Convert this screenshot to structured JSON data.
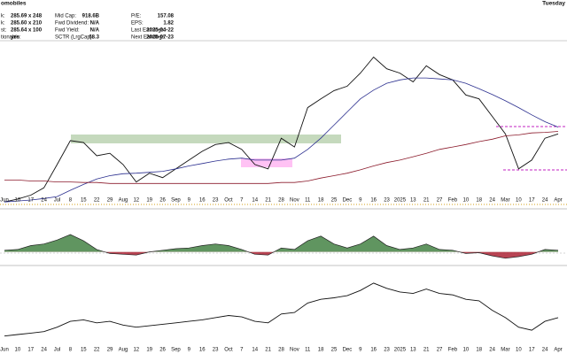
{
  "header": {
    "title": "omobiles",
    "day": "Tuesday",
    "info": [
      [
        [
          "k:",
          "285.69 x 248"
        ],
        [
          "Mid Cap:",
          "918.6B"
        ],
        [
          "P/E:",
          "157.08"
        ]
      ],
      [
        [
          "k:",
          "285.60 x 210"
        ],
        [
          "Fwd Dividend:",
          "N/A"
        ],
        [
          "EPS:",
          "1.82"
        ]
      ],
      [
        [
          "st:",
          "285.64 x 100"
        ],
        [
          "Fwd Yield:",
          "N/A"
        ],
        [
          "Last Earnings:",
          "2025-04-22"
        ]
      ],
      [
        [
          "tionable:",
          "yes"
        ],
        [
          "SCTR (LrgCap):",
          "68.3"
        ],
        [
          "Next Earnings:",
          "2025-07-23"
        ]
      ]
    ]
  },
  "chart_data": [
    {
      "type": "line",
      "categories": [
        "Jun",
        "10",
        "17",
        "24",
        "Jul",
        "8",
        "15",
        "22",
        "29",
        "Aug",
        "12",
        "19",
        "26",
        "Sep",
        "9",
        "16",
        "23",
        "Oct",
        "7",
        "14",
        "21",
        "28",
        "Nov",
        "11",
        "18",
        "25",
        "Dec",
        "9",
        "16",
        "23",
        "2025",
        "13",
        "21",
        "27",
        "Feb",
        "10",
        "18",
        "24",
        "Mar",
        "10",
        "17",
        "24",
        "Apr"
      ],
      "ylim": [
        170,
        505
      ],
      "series": [
        {
          "color": "#111111",
          "values": [
            177,
            183,
            191,
            206,
            254,
            303,
            299,
            272,
            277,
            254,
            218,
            236,
            227,
            245,
            263,
            281,
            295,
            299,
            285,
            254,
            245,
            308,
            290,
            371,
            389,
            406,
            415,
            442,
            475,
            451,
            442,
            424,
            457,
            439,
            428,
            397,
            389,
            353,
            317,
            245,
            263,
            308,
            317
          ]
        },
        {
          "color": "#2b2f8f",
          "values": [
            177,
            179,
            181,
            184,
            188,
            201,
            213,
            224,
            231,
            235,
            236,
            238,
            240,
            245,
            251,
            256,
            261,
            265,
            267,
            263,
            263,
            263,
            267,
            285,
            308,
            335,
            362,
            389,
            407,
            421,
            428,
            432,
            432,
            430,
            428,
            421,
            410,
            398,
            385,
            371,
            356,
            342,
            331
          ]
        },
        {
          "color": "#8b1a2b",
          "values": [
            222,
            222,
            220,
            220,
            218,
            218,
            217,
            217,
            215,
            215,
            215,
            215,
            215,
            215,
            215,
            215,
            215,
            215,
            215,
            215,
            215,
            217,
            217,
            220,
            226,
            231,
            236,
            243,
            251,
            258,
            263,
            270,
            277,
            285,
            290,
            295,
            301,
            306,
            313,
            315,
            319,
            320,
            322
          ]
        }
      ]
    },
    {
      "type": "area",
      "ylim": [
        -15,
        50
      ],
      "color": "#4f8a4f",
      "negative_color": "#b03040",
      "values": [
        2,
        3,
        8,
        10,
        15,
        22,
        14,
        3,
        -2,
        -3,
        -4,
        0,
        2,
        4,
        5,
        8,
        10,
        8,
        3,
        -3,
        -4,
        5,
        3,
        14,
        20,
        10,
        5,
        10,
        20,
        8,
        3,
        5,
        10,
        3,
        2,
        -2,
        -1,
        -5,
        -8,
        -6,
        -3,
        3,
        2
      ]
    },
    {
      "type": "line",
      "ylim": [
        0,
        100
      ],
      "color": "#111111",
      "categories": [
        "Jun",
        "10",
        "17",
        "24",
        "Jul",
        "8",
        "15",
        "22",
        "29",
        "Aug",
        "12",
        "19",
        "26",
        "Sep",
        "9",
        "16",
        "23",
        "Oct",
        "7",
        "14",
        "21",
        "28",
        "Nov",
        "11",
        "18",
        "25",
        "Dec",
        "9",
        "16",
        "23",
        "2025",
        "13",
        "21",
        "27",
        "Feb",
        "10",
        "18",
        "24",
        "Mar",
        "10",
        "17",
        "24",
        "Apr"
      ],
      "values": [
        10,
        12,
        14,
        16,
        22,
        30,
        32,
        28,
        30,
        25,
        22,
        24,
        26,
        28,
        30,
        32,
        35,
        38,
        36,
        30,
        28,
        40,
        42,
        55,
        60,
        62,
        65,
        72,
        82,
        75,
        70,
        68,
        74,
        68,
        66,
        60,
        58,
        45,
        35,
        22,
        18,
        30,
        35
      ]
    }
  ]
}
